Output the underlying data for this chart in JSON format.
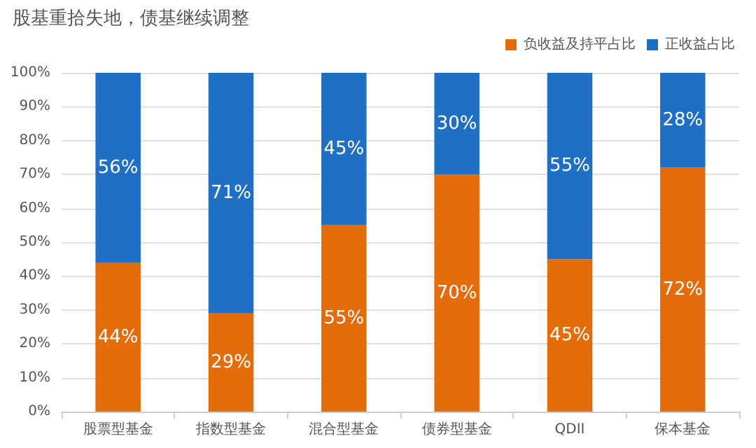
{
  "chart_data": {
    "type": "bar",
    "title": "股基重拾失地，债基继续调整",
    "categories": [
      "股票型基金",
      "指数型基金",
      "混合型基金",
      "债券型基金",
      "QDII",
      "保本基金"
    ],
    "series": [
      {
        "name": "负收益及持平占比",
        "color": "#e46c0a",
        "values": [
          44,
          29,
          55,
          70,
          45,
          72
        ]
      },
      {
        "name": "正收益占比",
        "color": "#1f6fc5",
        "values": [
          56,
          71,
          45,
          30,
          55,
          28
        ]
      }
    ],
    "stacked": true,
    "ylim": [
      0,
      100
    ],
    "yticks": [
      {
        "value": 0,
        "label": "0%"
      },
      {
        "value": 10,
        "label": "10%"
      },
      {
        "value": 20,
        "label": "20%"
      },
      {
        "value": 30,
        "label": "30%"
      },
      {
        "value": 40,
        "label": "40%"
      },
      {
        "value": 50,
        "label": "50%"
      },
      {
        "value": 60,
        "label": "60%"
      },
      {
        "value": 70,
        "label": "70%"
      },
      {
        "value": 80,
        "label": "80%"
      },
      {
        "value": 90,
        "label": "90%"
      },
      {
        "value": 100,
        "label": "100%"
      }
    ],
    "value_labels": [
      [
        "44%",
        "29%",
        "55%",
        "70%",
        "45%",
        "72%"
      ],
      [
        "56%",
        "71%",
        "45%",
        "30%",
        "55%",
        "28%"
      ]
    ],
    "grid": "y",
    "legend": "top right"
  }
}
